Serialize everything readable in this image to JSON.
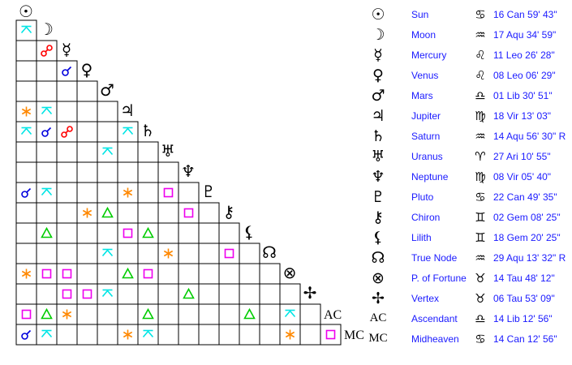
{
  "planets": [
    {
      "glyph": "☉",
      "name": "Sun",
      "sign_glyph": "♋",
      "position": "16 Can 59' 43\""
    },
    {
      "glyph": "☽",
      "name": "Moon",
      "sign_glyph": "♒",
      "position": "17 Aqu 34' 59\""
    },
    {
      "glyph": "☿",
      "name": "Mercury",
      "sign_glyph": "♌",
      "position": "11 Leo 26' 28\""
    },
    {
      "glyph": "♀",
      "name": "Venus",
      "sign_glyph": "♌",
      "position": "08 Leo 06' 29\""
    },
    {
      "glyph": "♂",
      "name": "Mars",
      "sign_glyph": "♎",
      "position": "01 Lib 30' 51\""
    },
    {
      "glyph": "♃",
      "name": "Jupiter",
      "sign_glyph": "♍",
      "position": "18 Vir 13' 03\""
    },
    {
      "glyph": "♄",
      "name": "Saturn",
      "sign_glyph": "♒",
      "position": "14 Aqu 56' 30\" R"
    },
    {
      "glyph": "♅",
      "name": "Uranus",
      "sign_glyph": "♈",
      "position": "27 Ari 10' 55\""
    },
    {
      "glyph": "♆",
      "name": "Neptune",
      "sign_glyph": "♍",
      "position": "08 Vir 05' 40\""
    },
    {
      "glyph": "♇",
      "name": "Pluto",
      "sign_glyph": "♋",
      "position": "22 Can 49' 35\""
    },
    {
      "glyph": "⚷",
      "name": "Chiron",
      "sign_glyph": "♊",
      "position": "02 Gem 08' 25\""
    },
    {
      "glyph": "⚸",
      "name": "Lilith",
      "sign_glyph": "♊",
      "position": "18 Gem 20' 25\""
    },
    {
      "glyph": "☊",
      "name": "True Node",
      "sign_glyph": "♒",
      "position": "29 Aqu 13' 32\" R"
    },
    {
      "glyph": "⊗",
      "name": "P. of Fortune",
      "sign_glyph": "♉",
      "position": "14 Tau 48' 12\""
    },
    {
      "glyph": "✢",
      "name": "Vertex",
      "sign_glyph": "♉",
      "position": "06 Tau 53' 09\""
    },
    {
      "glyph": "AC",
      "name": "Ascendant",
      "sign_glyph": "♎",
      "position": "14 Lib 12' 56\""
    },
    {
      "glyph": "MC",
      "name": "Midheaven",
      "sign_glyph": "♋",
      "position": "14 Can 12' 56\""
    }
  ],
  "aspect_colors": {
    "conjunction": "#0000dd",
    "opposition": "#ff0000",
    "sextile": "#ff8800",
    "square": "#ee00ee",
    "trine": "#00cc00",
    "quincunx": "#00e5e5"
  },
  "aspect_codes": {
    "C": "conjunction",
    "O": "opposition",
    "S": "sextile",
    "Q": "square",
    "T": "trine",
    "X": "quincunx"
  },
  "aspect_grid": [
    [
      "X"
    ],
    [
      "",
      "O"
    ],
    [
      "",
      "",
      "C"
    ],
    [
      "",
      "",
      "",
      ""
    ],
    [
      "S",
      "X",
      "",
      "",
      ""
    ],
    [
      "X",
      "C",
      "O",
      "",
      "",
      "X"
    ],
    [
      "",
      "",
      "",
      "",
      "X",
      "",
      ""
    ],
    [
      "",
      "",
      "",
      "",
      "",
      "",
      "",
      ""
    ],
    [
      "C",
      "X",
      "",
      "",
      "",
      "S",
      "",
      "Q",
      ""
    ],
    [
      "",
      "",
      "",
      "S",
      "T",
      "",
      "",
      "",
      "Q",
      ""
    ],
    [
      "",
      "T",
      "",
      "",
      "",
      "Q",
      "T",
      "",
      "",
      "",
      ""
    ],
    [
      "",
      "",
      "",
      "",
      "X",
      "",
      "",
      "S",
      "",
      "",
      "Q",
      ""
    ],
    [
      "S",
      "Q",
      "Q",
      "",
      "",
      "T",
      "Q",
      "",
      "",
      "",
      "",
      "",
      ""
    ],
    [
      "",
      "",
      "Q",
      "Q",
      "X",
      "",
      "",
      "",
      "T",
      "",
      "",
      "",
      "",
      ""
    ],
    [
      "Q",
      "T",
      "S",
      "",
      "",
      "",
      "T",
      "",
      "",
      "",
      "",
      "T",
      "",
      "X",
      ""
    ],
    [
      "C",
      "X",
      "",
      "",
      "",
      "S",
      "X",
      "",
      "",
      "",
      "",
      "",
      "",
      "S",
      "",
      "Q"
    ]
  ]
}
